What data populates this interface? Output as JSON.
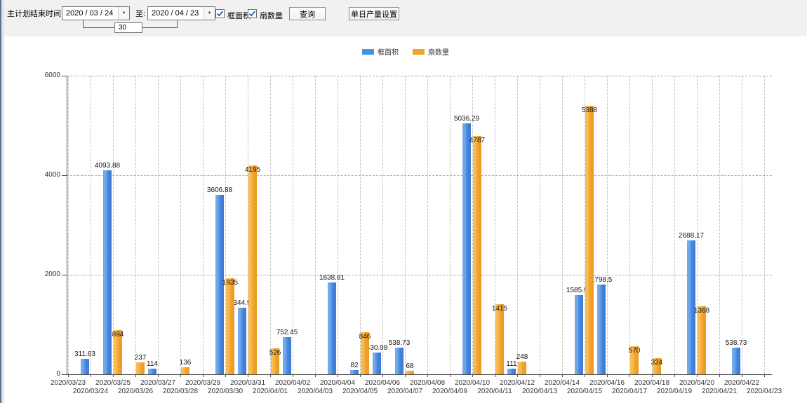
{
  "toolbar": {
    "label_main": "主计划结束时间:",
    "date_from": "2020 / 03 / 24",
    "to_label": "至:",
    "date_to": "2020 / 04 / 23",
    "days_value": "30",
    "checkbox_frame_area": {
      "label": "框面积",
      "checked": true
    },
    "checkbox_fan_count": {
      "label": "扇数量",
      "checked": true
    },
    "query_button": "查询",
    "daily_output_button": "单日产量设置"
  },
  "legend": [
    {
      "label": "框面积",
      "color": "#4a90e2"
    },
    {
      "label": "扇数量",
      "color": "#f0a22c"
    }
  ],
  "chart_data": {
    "type": "bar",
    "categories": [
      "2020/03/23",
      "2020/03/24",
      "2020/03/25",
      "2020/03/26",
      "2020/03/27",
      "2020/03/28",
      "2020/03/29",
      "2020/03/30",
      "2020/03/31",
      "2020/04/01",
      "2020/04/02",
      "2020/04/03",
      "2020/04/04",
      "2020/04/05",
      "2020/04/06",
      "2020/04/07",
      "2020/04/08",
      "2020/04/09",
      "2020/04/10",
      "2020/04/11",
      "2020/04/12",
      "2020/04/13",
      "2020/04/14",
      "2020/04/15",
      "2020/04/16",
      "2020/04/17",
      "2020/04/18",
      "2020/04/19",
      "2020/04/20",
      "2020/04/21",
      "2020/04/22",
      "2020/04/23"
    ],
    "series": [
      {
        "name": "框面积",
        "color": "#4a90e2",
        "values": [
          null,
          311.63,
          4093.88,
          null,
          114,
          null,
          null,
          3606.88,
          1344.95,
          null,
          752.45,
          null,
          1838.81,
          82,
          430.98,
          538.73,
          null,
          null,
          5036.29,
          null,
          111,
          null,
          null,
          1585.96,
          1798.5,
          null,
          null,
          null,
          2688.17,
          null,
          538.73,
          null
        ]
      },
      {
        "name": "扇数量",
        "color": "#f0a22c",
        "values": [
          null,
          null,
          894,
          237,
          null,
          136,
          null,
          1935,
          4195,
          526,
          null,
          null,
          null,
          846,
          null,
          68,
          null,
          null,
          4787,
          1415,
          248,
          null,
          null,
          5388,
          null,
          570,
          324,
          null,
          1368,
          null,
          null,
          null
        ]
      }
    ],
    "title": "",
    "xlabel": "",
    "ylabel": "",
    "ylim": [
      0,
      6000
    ],
    "yticks": [
      0,
      2000,
      4000,
      6000
    ],
    "grid": "dashed",
    "legend_position": "top-center"
  }
}
